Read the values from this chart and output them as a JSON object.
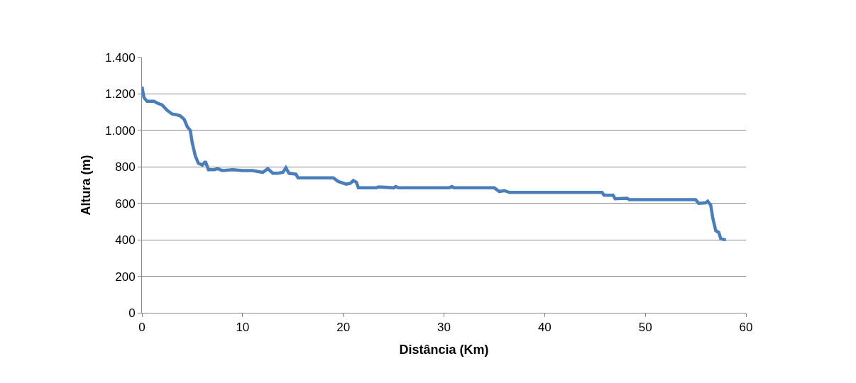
{
  "chart_data": {
    "type": "line",
    "xlabel": "Distância (Km)",
    "ylabel": "Altura (m)",
    "xlim": [
      0,
      60
    ],
    "xticks": [
      0,
      10,
      20,
      30,
      40,
      50,
      60
    ],
    "ylim": [
      0,
      1400
    ],
    "yticks": [
      0,
      {
        "value": 200,
        "label": "200"
      },
      {
        "value": 400,
        "label": "400"
      },
      {
        "value": 600,
        "label": "600"
      },
      {
        "value": 800,
        "label": "800"
      },
      {
        "value": 1000,
        "label": "1.000"
      },
      {
        "value": 1200,
        "label": "1.200"
      },
      {
        "value": 1400,
        "label": "1.400"
      }
    ],
    "grid": "y",
    "legend": false,
    "series": [
      {
        "color": "#4a7ebb",
        "x": [
          0,
          0.2,
          0.5,
          1.2,
          1.5,
          2,
          2.5,
          3,
          3.5,
          3.8,
          4.2,
          4.5,
          4.8,
          5,
          5.3,
          5.6,
          6,
          6.3,
          6.6,
          7.2,
          7.5,
          8,
          9,
          10,
          11,
          12,
          12.5,
          13,
          13.5,
          14,
          14.3,
          14.6,
          15.3,
          15.5,
          19,
          19.5,
          20.3,
          20.7,
          21,
          21.3,
          21.5,
          23.3,
          23.5,
          25,
          25.2,
          25.5,
          30.5,
          30.8,
          31,
          35,
          35.5,
          36,
          36.5,
          45.7,
          45.9,
          46.8,
          47,
          48.2,
          48.4,
          55,
          55.3,
          56,
          56.2,
          56.5,
          56.7,
          57,
          57.3,
          57.5,
          58
        ],
        "values": [
          1240,
          1180,
          1160,
          1160,
          1150,
          1140,
          1110,
          1090,
          1085,
          1080,
          1060,
          1020,
          1000,
          930,
          860,
          820,
          810,
          830,
          785,
          785,
          790,
          780,
          785,
          780,
          780,
          770,
          790,
          765,
          765,
          770,
          795,
          765,
          760,
          740,
          740,
          720,
          705,
          710,
          725,
          715,
          685,
          685,
          690,
          685,
          692,
          685,
          685,
          692,
          685,
          685,
          665,
          670,
          660,
          660,
          645,
          645,
          625,
          628,
          620,
          620,
          600,
          603,
          612,
          590,
          520,
          450,
          440,
          405,
          400
        ]
      }
    ]
  }
}
